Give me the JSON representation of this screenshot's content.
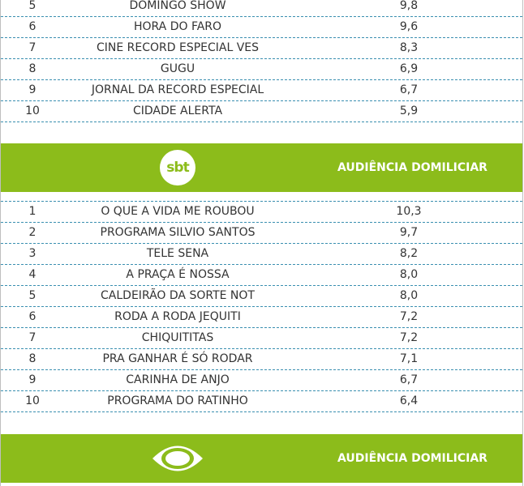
{
  "top_table": {
    "rows": [
      {
        "rank": "5",
        "program": "DOMINGO SHOW",
        "score": "9,8"
      },
      {
        "rank": "6",
        "program": "HORA DO FARO",
        "score": "9,6"
      },
      {
        "rank": "7",
        "program": "CINE RECORD ESPECIAL VES",
        "score": "8,3"
      },
      {
        "rank": "8",
        "program": "GUGU",
        "score": "6,9"
      },
      {
        "rank": "9",
        "program": "JORNAL DA RECORD ESPECIAL",
        "score": "6,7"
      },
      {
        "rank": "10",
        "program": "CIDADE ALERTA",
        "score": "5,9"
      }
    ]
  },
  "sbt_section": {
    "logo_text": "sbt",
    "logo_icon": "sbt-logo-icon",
    "header_title": "AUDIÊNCIA DOMILICIAR",
    "rows": [
      {
        "rank": "1",
        "program": "O QUE A VIDA ME ROUBOU",
        "score": "10,3"
      },
      {
        "rank": "2",
        "program": "PROGRAMA SILVIO SANTOS",
        "score": "9,7"
      },
      {
        "rank": "3",
        "program": "TELE SENA",
        "score": "8,2"
      },
      {
        "rank": "4",
        "program": "A PRAÇA É NOSSA",
        "score": "8,0"
      },
      {
        "rank": "5",
        "program": "CALDEIRÃO DA SORTE NOT",
        "score": "8,0"
      },
      {
        "rank": "6",
        "program": "RODA A RODA JEQUITI",
        "score": "7,2"
      },
      {
        "rank": "7",
        "program": "CHIQUITITAS",
        "score": "7,2"
      },
      {
        "rank": "8",
        "program": "PRA GANHAR É SÓ RODAR",
        "score": "7,1"
      },
      {
        "rank": "9",
        "program": "CARINHA DE ANJO",
        "score": "6,7"
      },
      {
        "rank": "10",
        "program": "PROGRAMA DO RATINHO",
        "score": "6,4"
      }
    ]
  },
  "band_section": {
    "logo_icon": "band-logo-icon",
    "header_title": "AUDIÊNCIA DOMILICIAR"
  },
  "colors": {
    "accent_green": "#8cbc1b",
    "divider_blue": "#3a8fb0",
    "text": "#333333"
  }
}
